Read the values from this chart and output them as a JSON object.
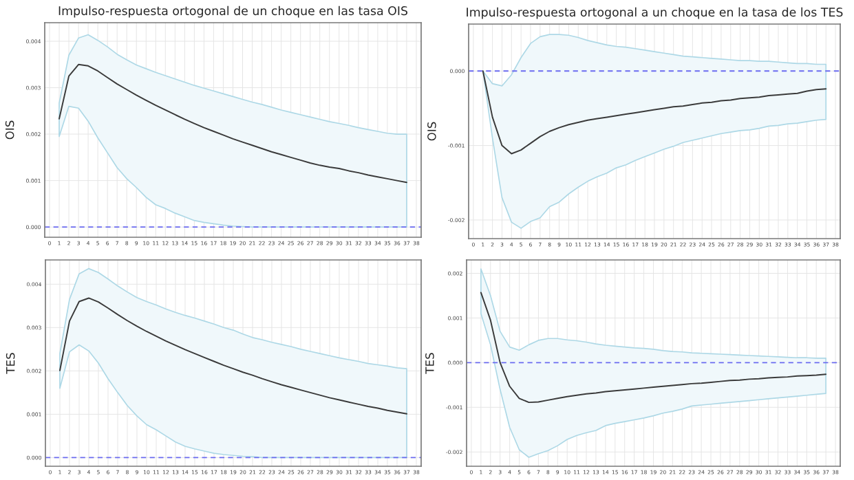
{
  "chart_data": [
    {
      "type": "line",
      "title": "Impulso-respuesta ortogonal de un choque en las tasa OIS",
      "ylabel": "OIS",
      "x": [
        1,
        2,
        3,
        4,
        5,
        6,
        7,
        8,
        9,
        10,
        11,
        12,
        13,
        14,
        15,
        16,
        17,
        18,
        19,
        20,
        21,
        22,
        23,
        24,
        25,
        26,
        27,
        28,
        29,
        30,
        31,
        32,
        33,
        34,
        35,
        36,
        37
      ],
      "series": [
        {
          "color": "#3a3a3a",
          "values": [
            0.00233,
            0.00325,
            0.0035,
            0.00347,
            0.00336,
            0.00322,
            0.00308,
            0.00296,
            0.00284,
            0.00273,
            0.00262,
            0.00252,
            0.00242,
            0.00232,
            0.00223,
            0.00214,
            0.00206,
            0.00198,
            0.0019,
            0.00183,
            0.00176,
            0.00169,
            0.00162,
            0.00156,
            0.0015,
            0.00144,
            0.00138,
            0.00133,
            0.00129,
            0.00126,
            0.00121,
            0.00117,
            0.00112,
            0.00108,
            0.00104,
            0.001,
            0.00096
          ],
          "upper": [
            0.00267,
            0.0037,
            0.00407,
            0.00414,
            0.00402,
            0.00388,
            0.00372,
            0.0036,
            0.00349,
            0.00341,
            0.00333,
            0.00326,
            0.00319,
            0.00312,
            0.00305,
            0.00299,
            0.00293,
            0.00287,
            0.00281,
            0.00275,
            0.00269,
            0.00264,
            0.00258,
            0.00252,
            0.00247,
            0.00242,
            0.00237,
            0.00232,
            0.00227,
            0.00223,
            0.00219,
            0.00214,
            0.0021,
            0.00206,
            0.00202,
            0.002,
            0.002
          ],
          "lower": [
            0.00195,
            0.0026,
            0.00256,
            0.00228,
            0.00192,
            0.0016,
            0.00128,
            0.00104,
            0.00085,
            0.00064,
            0.00048,
            0.0004,
            0.0003,
            0.00022,
            0.00014,
            0.0001,
            7e-05,
            4e-05,
            2e-05,
            1e-05,
            0.0,
            0.0,
            0.0,
            0.0,
            0.0,
            0.0,
            0.0,
            0.0,
            0.0,
            0.0,
            0.0,
            0.0,
            0.0,
            0.0,
            0.0,
            0.0,
            0.0
          ]
        }
      ],
      "xlim": [
        -0.5,
        38.5
      ],
      "xticks": [
        0,
        1,
        2,
        3,
        4,
        5,
        6,
        7,
        8,
        9,
        10,
        11,
        12,
        13,
        14,
        15,
        16,
        17,
        18,
        19,
        20,
        21,
        22,
        23,
        24,
        25,
        26,
        27,
        28,
        29,
        30,
        31,
        32,
        33,
        34,
        35,
        36,
        37,
        38
      ],
      "ylim": [
        -0.00022,
        0.0044
      ],
      "yticks": [
        {
          "value": 0,
          "label": "0.000"
        },
        {
          "value": 0.001,
          "label": "0.001"
        },
        {
          "value": 0.002,
          "label": "0.002"
        },
        {
          "value": 0.003,
          "label": "0.003"
        },
        {
          "value": 0.004,
          "label": "0.004"
        }
      ],
      "ref_lines": [
        {
          "axis": "y",
          "value": 0,
          "color": "#6b6bf0",
          "line_style": "dashed"
        }
      ],
      "grid": true
    },
    {
      "type": "line",
      "title": "Impulso-respuesta ortogonal a un choque en la tasa de los TES",
      "ylabel": "OIS",
      "x": [
        1,
        2,
        3,
        4,
        5,
        6,
        7,
        8,
        9,
        10,
        11,
        12,
        13,
        14,
        15,
        16,
        17,
        18,
        19,
        20,
        21,
        22,
        23,
        24,
        25,
        26,
        27,
        28,
        29,
        30,
        31,
        32,
        33,
        34,
        35,
        36,
        37
      ],
      "series": [
        {
          "color": "#3a3a3a",
          "values": [
            0.0,
            -0.00062,
            -0.001,
            -0.00111,
            -0.00106,
            -0.00097,
            -0.00088,
            -0.00081,
            -0.00076,
            -0.00072,
            -0.00069,
            -0.00066,
            -0.00064,
            -0.00062,
            -0.0006,
            -0.00058,
            -0.00056,
            -0.00054,
            -0.00052,
            -0.0005,
            -0.00048,
            -0.00047,
            -0.00045,
            -0.00043,
            -0.00042,
            -0.0004,
            -0.00039,
            -0.00037,
            -0.00036,
            -0.00035,
            -0.00033,
            -0.00032,
            -0.00031,
            -0.0003,
            -0.00027,
            -0.00025,
            -0.00024
          ],
          "upper": [
            0.0,
            -0.00017,
            -0.0002,
            -5e-05,
            0.00018,
            0.00037,
            0.00046,
            0.00049,
            0.00049,
            0.00048,
            0.00045,
            0.00041,
            0.00038,
            0.00035,
            0.00033,
            0.00032,
            0.0003,
            0.00028,
            0.00026,
            0.00024,
            0.00022,
            0.0002,
            0.00019,
            0.00018,
            0.00017,
            0.00016,
            0.00015,
            0.00014,
            0.00014,
            0.00013,
            0.00013,
            0.00012,
            0.00011,
            0.0001,
            0.0001,
            9e-05,
            9e-05
          ],
          "lower": [
            0.0,
            -0.0009,
            -0.0017,
            -0.00203,
            -0.00211,
            -0.00202,
            -0.00197,
            -0.00182,
            -0.00176,
            -0.00165,
            -0.00156,
            -0.00148,
            -0.00142,
            -0.00137,
            -0.0013,
            -0.00126,
            -0.0012,
            -0.00115,
            -0.0011,
            -0.00105,
            -0.00101,
            -0.00096,
            -0.00093,
            -0.0009,
            -0.00087,
            -0.00084,
            -0.00082,
            -0.0008,
            -0.00079,
            -0.00077,
            -0.00074,
            -0.00073,
            -0.00071,
            -0.0007,
            -0.00068,
            -0.00066,
            -0.00065
          ]
        }
      ],
      "xlim": [
        -0.5,
        38.5
      ],
      "xticks": [
        0,
        1,
        2,
        3,
        4,
        5,
        6,
        7,
        8,
        9,
        10,
        11,
        12,
        13,
        14,
        15,
        16,
        17,
        18,
        19,
        20,
        21,
        22,
        23,
        24,
        25,
        26,
        27,
        28,
        29,
        30,
        31,
        32,
        33,
        34,
        35,
        36,
        37,
        38
      ],
      "ylim": [
        -0.00225,
        0.00063
      ],
      "yticks": [
        {
          "value": -0.002,
          "label": "-0.002"
        },
        {
          "value": -0.001,
          "label": "-0.001"
        },
        {
          "value": 0,
          "label": "0.000"
        }
      ],
      "ref_lines": [
        {
          "axis": "y",
          "value": 0,
          "color": "#6b6bf0",
          "line_style": "dashed"
        }
      ],
      "grid": true
    },
    {
      "type": "line",
      "ylabel": "TES",
      "x": [
        1,
        2,
        3,
        4,
        5,
        6,
        7,
        8,
        9,
        10,
        11,
        12,
        13,
        14,
        15,
        16,
        17,
        18,
        19,
        20,
        21,
        22,
        23,
        24,
        25,
        26,
        27,
        28,
        29,
        30,
        31,
        32,
        33,
        34,
        35,
        36,
        37
      ],
      "series": [
        {
          "color": "#3a3a3a",
          "values": [
            0.00201,
            0.00315,
            0.0036,
            0.00368,
            0.00359,
            0.00345,
            0.0033,
            0.00316,
            0.00303,
            0.00291,
            0.0028,
            0.00269,
            0.00259,
            0.00249,
            0.0024,
            0.00231,
            0.00222,
            0.00213,
            0.00205,
            0.00197,
            0.0019,
            0.00182,
            0.00175,
            0.00168,
            0.00162,
            0.00156,
            0.0015,
            0.00144,
            0.00138,
            0.00133,
            0.00128,
            0.00123,
            0.00118,
            0.00114,
            0.00109,
            0.00105,
            0.00101
          ],
          "upper": [
            0.0024,
            0.00365,
            0.00424,
            0.00436,
            0.00427,
            0.00412,
            0.00396,
            0.00382,
            0.00369,
            0.0036,
            0.00352,
            0.00343,
            0.00335,
            0.00328,
            0.00322,
            0.00315,
            0.00308,
            0.003,
            0.00294,
            0.00285,
            0.00277,
            0.00272,
            0.00266,
            0.00261,
            0.00256,
            0.0025,
            0.00245,
            0.0024,
            0.00235,
            0.0023,
            0.00226,
            0.00222,
            0.00217,
            0.00214,
            0.00211,
            0.00207,
            0.00205
          ],
          "lower": [
            0.0016,
            0.00244,
            0.0026,
            0.00246,
            0.00218,
            0.00182,
            0.0015,
            0.0012,
            0.00096,
            0.00076,
            0.00064,
            0.0005,
            0.00036,
            0.00026,
            0.0002,
            0.00015,
            0.0001,
            7e-05,
            5e-05,
            3e-05,
            2e-05,
            0.0,
            0.0,
            0.0,
            0.0,
            0.0,
            0.0,
            0.0,
            0.0,
            0.0,
            0.0,
            0.0,
            0.0,
            0.0,
            0.0,
            0.0,
            0.0
          ]
        }
      ],
      "xlim": [
        -0.5,
        38.5
      ],
      "xticks": [
        0,
        1,
        2,
        3,
        4,
        5,
        6,
        7,
        8,
        9,
        10,
        11,
        12,
        13,
        14,
        15,
        16,
        17,
        18,
        19,
        20,
        21,
        22,
        23,
        24,
        25,
        26,
        27,
        28,
        29,
        30,
        31,
        32,
        33,
        34,
        35,
        36,
        37,
        38
      ],
      "ylim": [
        -0.0002,
        0.00456
      ],
      "yticks": [
        {
          "value": 0,
          "label": "0.000"
        },
        {
          "value": 0.001,
          "label": "0.001"
        },
        {
          "value": 0.002,
          "label": "0.002"
        },
        {
          "value": 0.003,
          "label": "0.003"
        },
        {
          "value": 0.004,
          "label": "0.004"
        }
      ],
      "ref_lines": [
        {
          "axis": "y",
          "value": 0,
          "color": "#6b6bf0",
          "line_style": "dashed"
        }
      ],
      "grid": true
    },
    {
      "type": "line",
      "ylabel": "TES",
      "x": [
        1,
        2,
        3,
        4,
        5,
        6,
        7,
        8,
        9,
        10,
        11,
        12,
        13,
        14,
        15,
        16,
        17,
        18,
        19,
        20,
        21,
        22,
        23,
        24,
        25,
        26,
        27,
        28,
        29,
        30,
        31,
        32,
        33,
        34,
        35,
        36,
        37
      ],
      "series": [
        {
          "color": "#3a3a3a",
          "values": [
            0.00157,
            0.00095,
            0.0,
            -0.00053,
            -0.0008,
            -0.00089,
            -0.00088,
            -0.00084,
            -0.0008,
            -0.00076,
            -0.00073,
            -0.0007,
            -0.00068,
            -0.00065,
            -0.00063,
            -0.00061,
            -0.00059,
            -0.00057,
            -0.00055,
            -0.00053,
            -0.00051,
            -0.00049,
            -0.00047,
            -0.00046,
            -0.00044,
            -0.00042,
            -0.0004,
            -0.00039,
            -0.00037,
            -0.00036,
            -0.00034,
            -0.00033,
            -0.00032,
            -0.0003,
            -0.00029,
            -0.00028,
            -0.00026
          ],
          "upper": [
            0.0021,
            0.0015,
            0.0007,
            0.00035,
            0.00028,
            0.0004,
            0.0005,
            0.00054,
            0.00054,
            0.00051,
            0.00049,
            0.00046,
            0.00042,
            0.00039,
            0.00037,
            0.00035,
            0.00033,
            0.00032,
            0.0003,
            0.00027,
            0.00025,
            0.00024,
            0.00022,
            0.00021,
            0.0002,
            0.00019,
            0.00018,
            0.00017,
            0.00016,
            0.00015,
            0.00014,
            0.00013,
            0.00012,
            0.00011,
            0.00011,
            0.0001,
            0.0001
          ],
          "lower": [
            0.0011,
            0.0004,
            -0.0006,
            -0.00145,
            -0.00195,
            -0.00212,
            -0.00204,
            -0.00197,
            -0.00186,
            -0.00172,
            -0.00163,
            -0.00157,
            -0.00152,
            -0.00141,
            -0.00136,
            -0.00132,
            -0.00128,
            -0.00124,
            -0.00119,
            -0.00113,
            -0.00109,
            -0.00104,
            -0.00097,
            -0.00095,
            -0.00093,
            -0.00091,
            -0.00089,
            -0.00087,
            -0.00085,
            -0.00083,
            -0.00081,
            -0.00079,
            -0.00077,
            -0.00075,
            -0.00073,
            -0.00071,
            -0.00069
          ]
        }
      ],
      "xlim": [
        -0.5,
        38.5
      ],
      "xticks": [
        0,
        1,
        2,
        3,
        4,
        5,
        6,
        7,
        8,
        9,
        10,
        11,
        12,
        13,
        14,
        15,
        16,
        17,
        18,
        19,
        20,
        21,
        22,
        23,
        24,
        25,
        26,
        27,
        28,
        29,
        30,
        31,
        32,
        33,
        34,
        35,
        36,
        37,
        38
      ],
      "ylim": [
        -0.00232,
        0.0023
      ],
      "yticks": [
        {
          "value": -0.002,
          "label": "-0.002"
        },
        {
          "value": -0.001,
          "label": "-0.001"
        },
        {
          "value": 0,
          "label": "0.000"
        },
        {
          "value": 0.001,
          "label": "0.001"
        },
        {
          "value": 0.002,
          "label": "0.002"
        }
      ],
      "ref_lines": [
        {
          "axis": "y",
          "value": 0,
          "color": "#6b6bf0",
          "line_style": "dashed"
        }
      ],
      "grid": true
    }
  ]
}
